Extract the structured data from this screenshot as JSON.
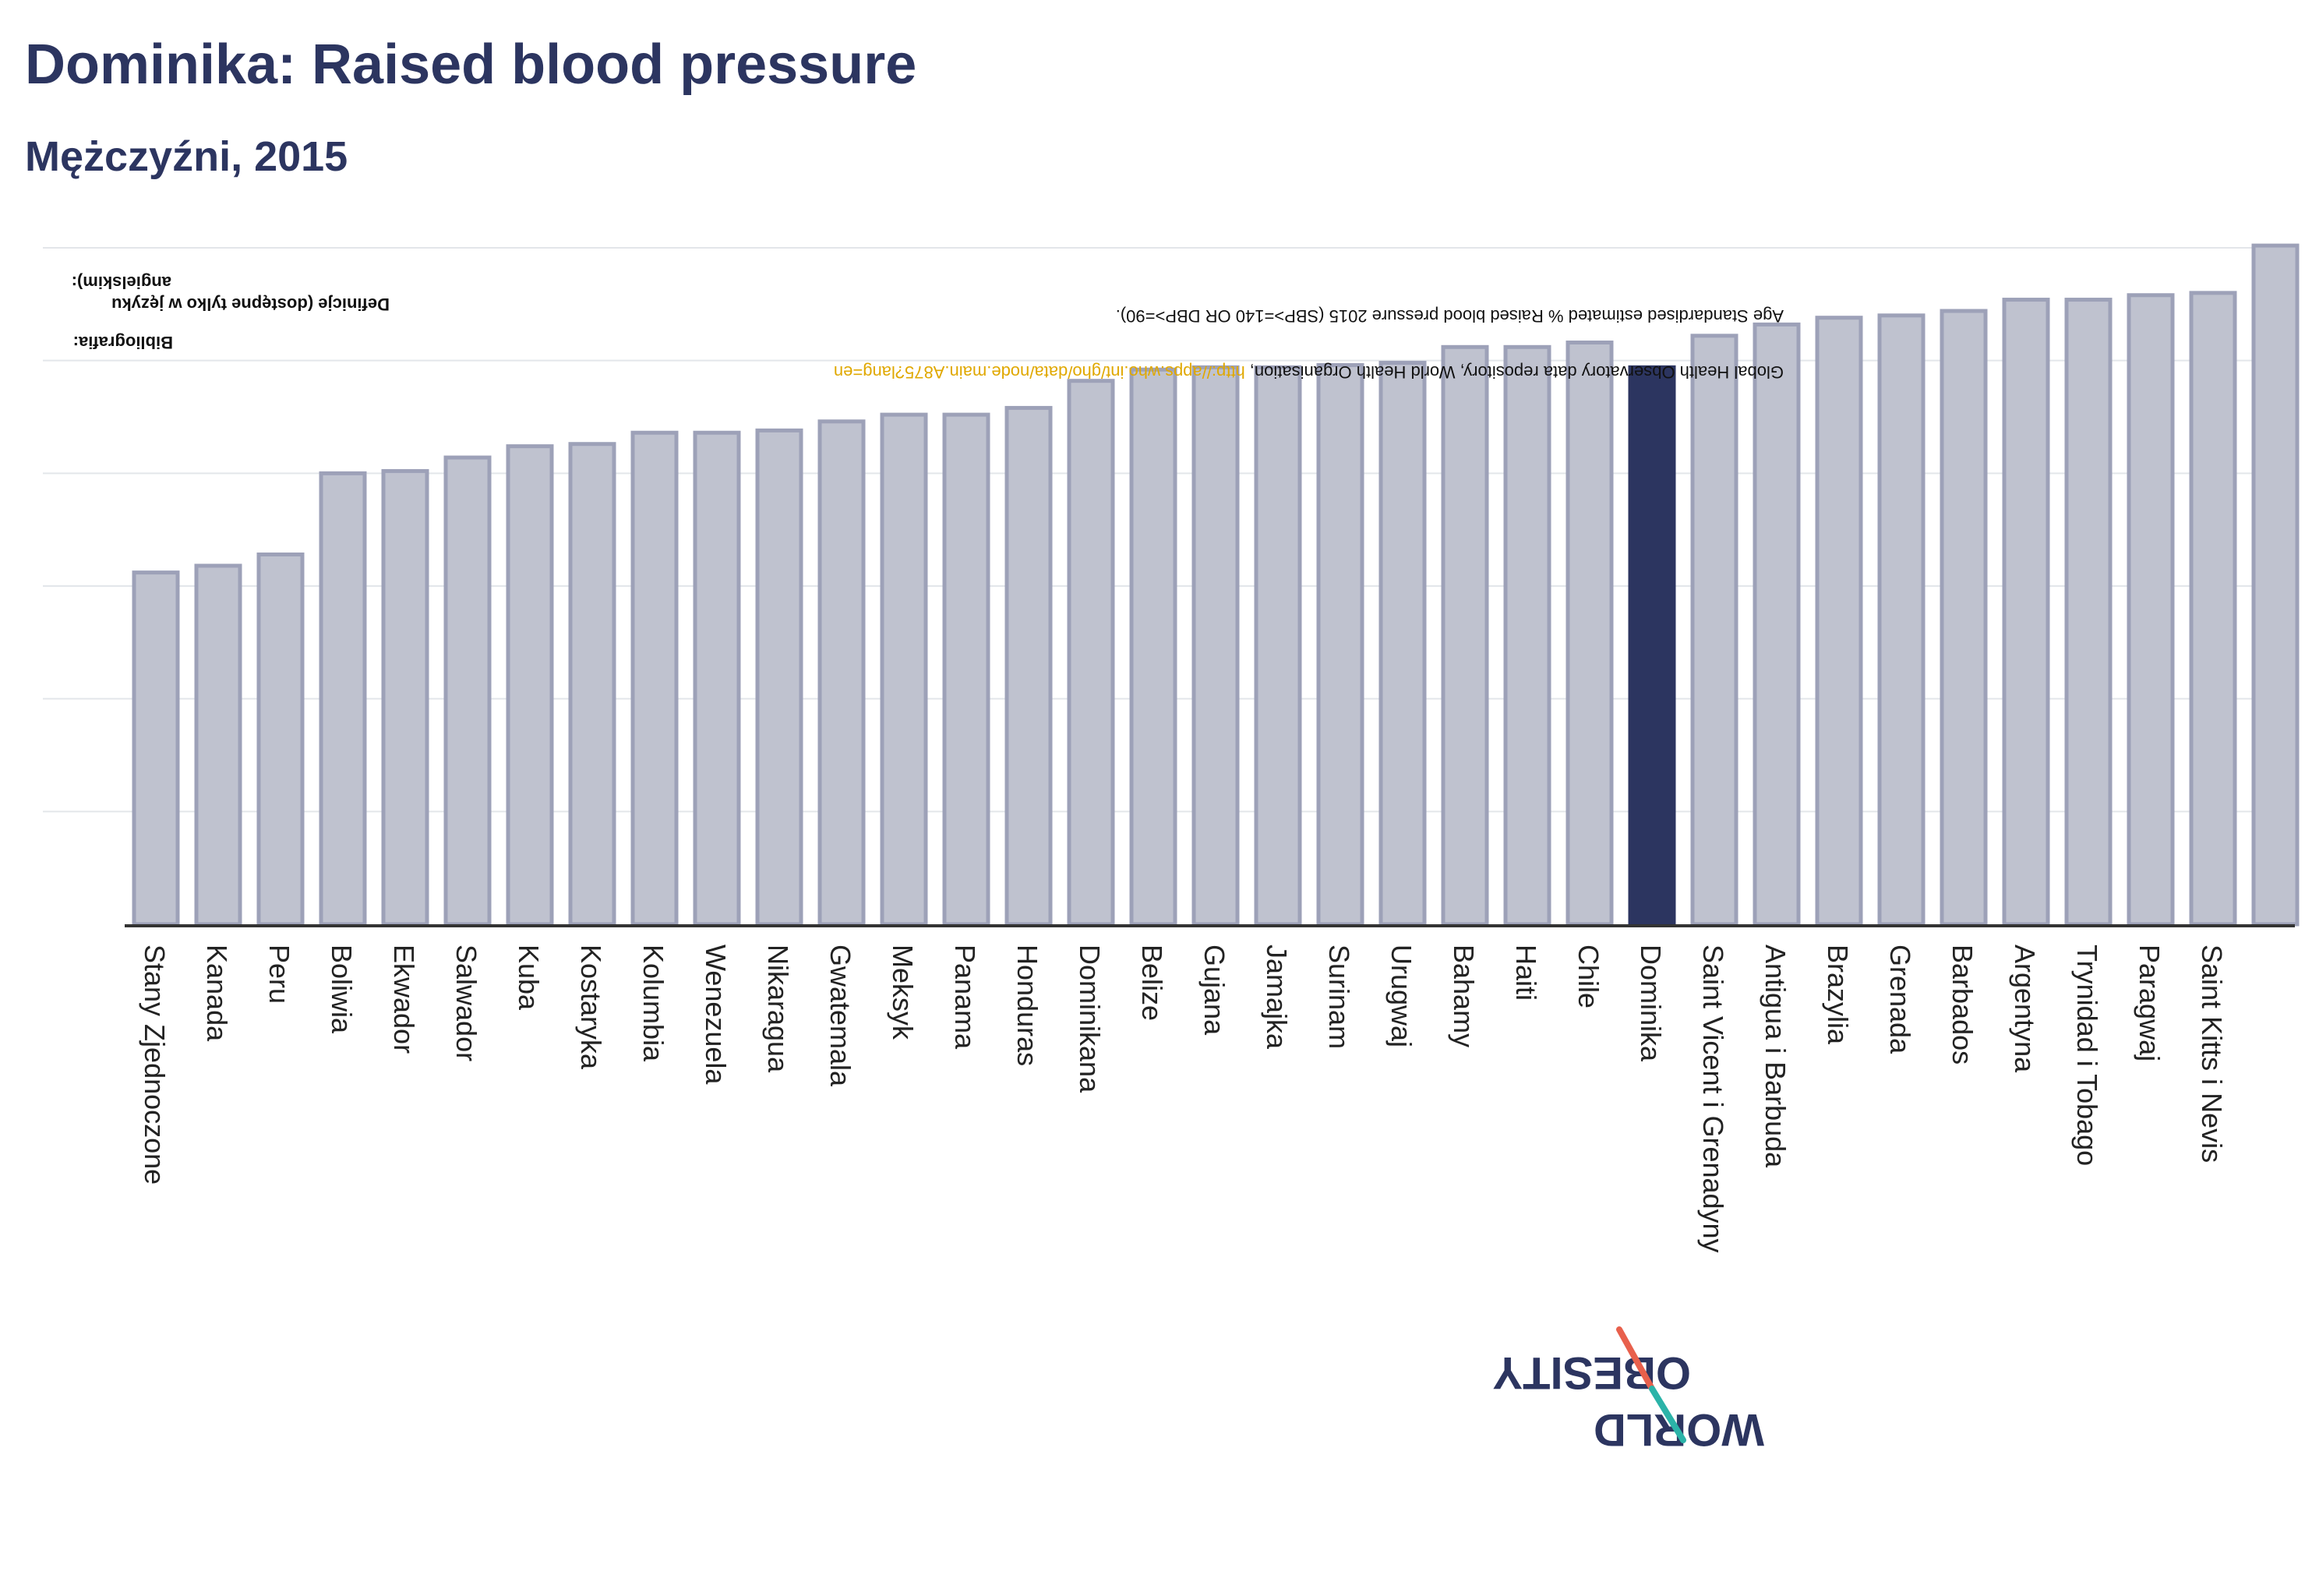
{
  "title": "Dominika: Raised blood pressure",
  "subtitle": "Mężczyźni, 2015",
  "notes": {
    "definitions_label_line1": "Definicje (dostępne tylko w języku",
    "definitions_label_line2": "angielskim):",
    "definitions_text": "Age Standardised estimated % Raised blood pressure 2015 (SBP>=140 OR DBP>=90).",
    "bibliography_label": "Bibliografia:",
    "bibliography_text": "Global Health Observatory data repository, World Health Organisation, ",
    "bibliography_link": "http://apps.who.int/gho/data/node.main.A875?lang=en"
  },
  "logo": {
    "line1": "OBESITY",
    "line2": "WORLD"
  },
  "colors": {
    "bar": "#bfc2cf",
    "bar_border": "#9da1b8",
    "highlight": "#2c3560",
    "axis": "#333333",
    "grid": "#e3e6ea"
  },
  "chart_data": {
    "type": "bar",
    "title": "Dominika: Raised blood pressure",
    "subtitle": "Mężczyźni, 2015",
    "highlight": "Dominika",
    "ylim": [
      0,
      30
    ],
    "grid": true,
    "categories": [
      "Stany Zjednoczone",
      "Kanada",
      "Peru",
      "Boliwia",
      "Ekwador",
      "Salwador",
      "Kuba",
      "Kostaryka",
      "Kolumbia",
      "Wenezuela",
      "Nikaragua",
      "Gwatemala",
      "Meksyk",
      "Panama",
      "Honduras",
      "Dominikana",
      "Belize",
      "Gujana",
      "Jamajka",
      "Surinam",
      "Urugwaj",
      "Bahamy",
      "Haiti",
      "Chile",
      "Dominika",
      "Saint Vicent i Grenadyny",
      "Antigua i Barbuda",
      "Brazylia",
      "Grenada",
      "Barbados",
      "Argentyna",
      "Trynidad i Tobago",
      "Paragwaj",
      "Saint Kitts i Nevis",
      ""
    ],
    "values": [
      15.6,
      15.9,
      16.4,
      20.0,
      20.1,
      20.7,
      21.2,
      21.3,
      21.8,
      21.8,
      21.9,
      22.3,
      22.6,
      22.6,
      22.9,
      24.1,
      24.6,
      24.7,
      24.7,
      24.8,
      24.9,
      25.6,
      25.6,
      25.8,
      24.7,
      26.1,
      26.6,
      26.9,
      27.0,
      27.2,
      27.7,
      27.7,
      27.9,
      28.0,
      30.1
    ]
  }
}
